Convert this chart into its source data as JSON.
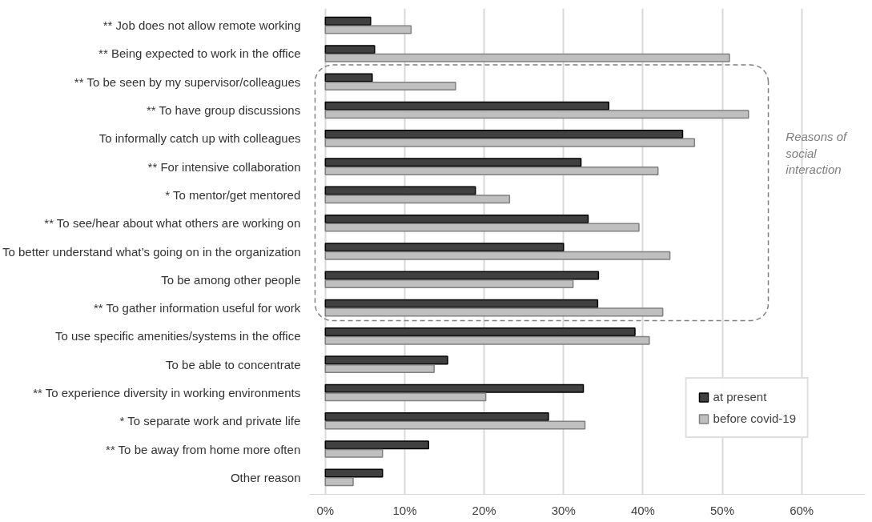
{
  "chart_data": {
    "type": "bar",
    "orientation": "horizontal",
    "categories": [
      "** Job does not allow remote working",
      "** Being expected to work in the office",
      "** To be seen by my supervisor/colleagues",
      "** To have group discussions",
      "To informally catch up with colleagues",
      "** For intensive collaboration",
      "* To mentor/get mentored",
      "** To see/hear about what others are working on",
      "To better understand what’s going on in the organization",
      "To be among other people",
      "** To gather information useful for work",
      "To use specific amenities/systems in the office",
      "To be able to concentrate",
      "** To experience diversity in working environments",
      "* To separate work and private life",
      "** To be away from home more often",
      "Other reason"
    ],
    "series": [
      {
        "name": "at present",
        "color": "#404040",
        "values": [
          5.7,
          6.2,
          5.9,
          35.7,
          45.0,
          32.2,
          18.9,
          33.1,
          30.0,
          34.4,
          34.3,
          39.0,
          15.4,
          32.5,
          28.1,
          13.0,
          7.2
        ]
      },
      {
        "name": "before covid-19",
        "color": "#bfbfbf",
        "values": [
          10.8,
          50.9,
          16.4,
          53.3,
          46.5,
          41.9,
          23.2,
          39.5,
          43.4,
          31.2,
          42.5,
          40.8,
          13.7,
          20.2,
          32.7,
          7.2,
          3.5
        ]
      }
    ],
    "xlim": [
      -2,
      68
    ],
    "xticks": [
      {
        "value": 0,
        "label": "0%"
      },
      {
        "value": 10,
        "label": "10%"
      },
      {
        "value": 20,
        "label": "20%"
      },
      {
        "value": 30,
        "label": "30%"
      },
      {
        "value": 40,
        "label": "40%"
      },
      {
        "value": 50,
        "label": "50%"
      },
      {
        "value": 60,
        "label": "60%"
      }
    ],
    "grid": "x",
    "legend": "bottom right",
    "annotations": [
      "Reasons of social interaction"
    ]
  }
}
